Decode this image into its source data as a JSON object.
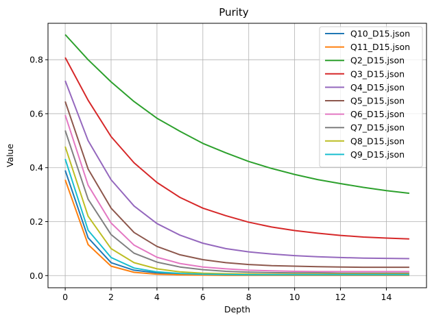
{
  "chart_data": {
    "type": "line",
    "title": "Purity",
    "xlabel": "Depth",
    "ylabel": "Value",
    "xlim": [
      -0.75,
      15.75
    ],
    "ylim": [
      -0.045,
      0.935
    ],
    "xticks": [
      0,
      2,
      4,
      6,
      8,
      10,
      12,
      14
    ],
    "yticks": [
      0.0,
      0.2,
      0.4,
      0.6,
      0.8
    ],
    "ytick_labels": [
      "0.0",
      "0.2",
      "0.4",
      "0.6",
      "0.8"
    ],
    "grid": true,
    "legend_position": "top-right",
    "x": [
      0,
      1,
      2,
      3,
      4,
      5,
      6,
      7,
      8,
      9,
      10,
      11,
      12,
      13,
      14,
      15
    ],
    "series": [
      {
        "name": "Q10_D15.json",
        "color": "#1f77b4",
        "values": [
          0.39,
          0.14,
          0.048,
          0.02,
          0.01,
          0.006,
          0.004,
          0.003,
          0.003,
          0.002,
          0.002,
          0.002,
          0.002,
          0.002,
          0.002,
          0.002
        ]
      },
      {
        "name": "Q11_D15.json",
        "color": "#ff7f0e",
        "values": [
          0.355,
          0.115,
          0.035,
          0.012,
          0.005,
          0.003,
          0.002,
          0.001,
          0.001,
          0.001,
          0.001,
          0.001,
          0.001,
          0.001,
          0.001,
          0.001
        ]
      },
      {
        "name": "Q2_D15.json",
        "color": "#2ca02c",
        "values": [
          0.893,
          0.8,
          0.718,
          0.645,
          0.583,
          0.535,
          0.49,
          0.455,
          0.423,
          0.397,
          0.375,
          0.356,
          0.341,
          0.327,
          0.315,
          0.305
        ]
      },
      {
        "name": "Q3_D15.json",
        "color": "#d62728",
        "values": [
          0.808,
          0.65,
          0.515,
          0.418,
          0.345,
          0.29,
          0.25,
          0.222,
          0.198,
          0.18,
          0.167,
          0.157,
          0.149,
          0.143,
          0.139,
          0.136
        ]
      },
      {
        "name": "Q4_D15.json",
        "color": "#9467bd",
        "values": [
          0.722,
          0.5,
          0.355,
          0.258,
          0.193,
          0.15,
          0.12,
          0.1,
          0.088,
          0.08,
          0.074,
          0.07,
          0.067,
          0.065,
          0.064,
          0.063
        ]
      },
      {
        "name": "Q5_D15.json",
        "color": "#8c564b",
        "values": [
          0.645,
          0.395,
          0.25,
          0.16,
          0.108,
          0.077,
          0.059,
          0.048,
          0.041,
          0.037,
          0.035,
          0.033,
          0.032,
          0.031,
          0.031,
          0.031
        ]
      },
      {
        "name": "Q6_D15.json",
        "color": "#e377c2",
        "values": [
          0.595,
          0.335,
          0.195,
          0.113,
          0.068,
          0.045,
          0.032,
          0.025,
          0.02,
          0.018,
          0.016,
          0.015,
          0.015,
          0.015,
          0.015,
          0.015
        ]
      },
      {
        "name": "Q7_D15.json",
        "color": "#7f7f7f",
        "values": [
          0.538,
          0.283,
          0.152,
          0.083,
          0.05,
          0.032,
          0.022,
          0.016,
          0.013,
          0.011,
          0.01,
          0.01,
          0.009,
          0.009,
          0.009,
          0.009
        ]
      },
      {
        "name": "Q8_D15.json",
        "color": "#bcbd22",
        "values": [
          0.478,
          0.22,
          0.1,
          0.048,
          0.025,
          0.014,
          0.009,
          0.007,
          0.006,
          0.005,
          0.005,
          0.005,
          0.005,
          0.005,
          0.005,
          0.005
        ]
      },
      {
        "name": "Q9_D15.json",
        "color": "#17becf",
        "values": [
          0.432,
          0.168,
          0.067,
          0.028,
          0.014,
          0.008,
          0.005,
          0.004,
          0.003,
          0.003,
          0.003,
          0.003,
          0.003,
          0.003,
          0.003,
          0.003
        ]
      }
    ]
  }
}
